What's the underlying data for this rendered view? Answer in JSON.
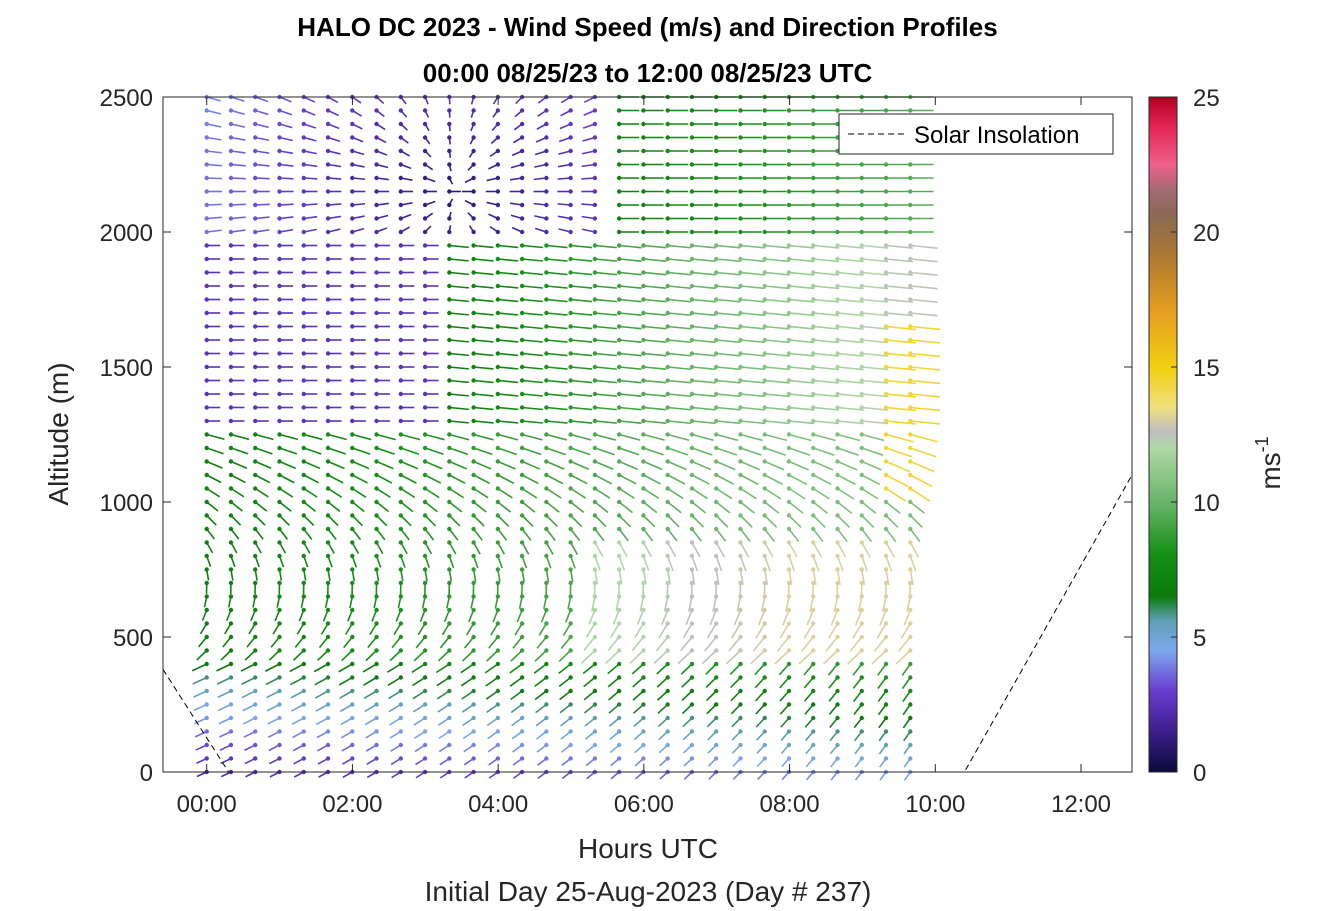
{
  "chart_data": {
    "type": "wind-barb-profile",
    "title": "HALO DC 2023 - Wind Speed (m/s) and Direction Profiles",
    "subtitle": "00:00 08/25/23 to 12:00 08/25/23  UTC",
    "xlabel": "Hours UTC",
    "xlabel2": "Initial Day 25-Aug-2023 (Day # 237)",
    "ylabel": "Altitude (m)",
    "x_ticks": [
      "00:00",
      "02:00",
      "04:00",
      "06:00",
      "08:00",
      "10:00",
      "12:00"
    ],
    "x_tick_hours": [
      0,
      2,
      4,
      6,
      8,
      10,
      12
    ],
    "xlim_hours": [
      -0.6,
      12.7
    ],
    "y_ticks": [
      "0",
      "500",
      "1000",
      "1500",
      "2000",
      "2500"
    ],
    "y_tick_values": [
      0,
      500,
      1000,
      1500,
      2000,
      2500
    ],
    "ylim": [
      0,
      2500
    ],
    "data_time_range_hours": [
      0,
      9.7
    ],
    "profile_interval_hours": 0.333,
    "altitude_step_m": 50,
    "colorbar": {
      "label": "ms",
      "label_superscript": "-1",
      "ticks": [
        "0",
        "5",
        "10",
        "15",
        "20",
        "25"
      ],
      "tick_values": [
        0,
        5,
        10,
        15,
        20,
        25
      ],
      "range": [
        0,
        25
      ],
      "stops": [
        {
          "v": 0,
          "c": "#0a0a3c"
        },
        {
          "v": 1.5,
          "c": "#3c1e8c"
        },
        {
          "v": 3,
          "c": "#6a3cd0"
        },
        {
          "v": 4.5,
          "c": "#7da8f0"
        },
        {
          "v": 5.6,
          "c": "#5fa0b4"
        },
        {
          "v": 6.5,
          "c": "#0c7a0c"
        },
        {
          "v": 8,
          "c": "#138f13"
        },
        {
          "v": 10,
          "c": "#6ab46a"
        },
        {
          "v": 12,
          "c": "#b0d8a8"
        },
        {
          "v": 12.6,
          "c": "#bebebe"
        },
        {
          "v": 13.5,
          "c": "#f0e080"
        },
        {
          "v": 15,
          "c": "#f2cf10"
        },
        {
          "v": 17,
          "c": "#e6a020"
        },
        {
          "v": 19,
          "c": "#b07a30"
        },
        {
          "v": 20.5,
          "c": "#8a6a50"
        },
        {
          "v": 21.5,
          "c": "#a06a70"
        },
        {
          "v": 22.5,
          "c": "#f0608a"
        },
        {
          "v": 24,
          "c": "#e02050"
        },
        {
          "v": 25,
          "c": "#b00020"
        }
      ]
    },
    "legend": {
      "entries": [
        "Solar Insolation"
      ],
      "placement": "top-right"
    },
    "solar_insolation": {
      "style": "dashed",
      "color": "#000000",
      "points": [
        {
          "hour": -0.6,
          "alt": 380
        },
        {
          "hour": 0.3,
          "alt": 0
        },
        {
          "hour": 10.4,
          "alt": 0
        },
        {
          "hour": 12.7,
          "alt": 1100
        }
      ]
    }
  }
}
